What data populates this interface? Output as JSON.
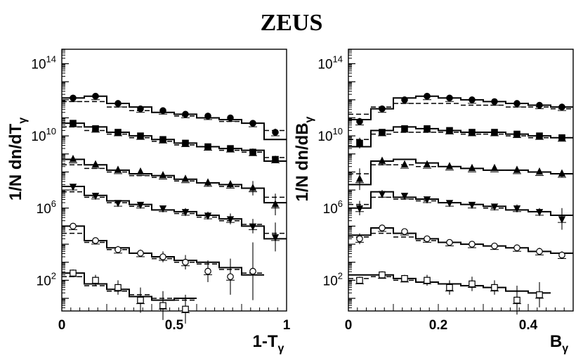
{
  "title": "ZEUS",
  "chart_data": [
    {
      "type": "scatter",
      "ylabel": "1/N dn/dT",
      "ylabel_sub": "γ",
      "xlabel": "1-T",
      "xlabel_sub": "γ",
      "xlim": [
        0,
        1
      ],
      "ylim_log10": [
        0.3,
        14.8
      ],
      "y_scale": "log",
      "xticks": [
        {
          "v": 0,
          "label": "0"
        },
        {
          "v": 0.5,
          "label": "0.5"
        },
        {
          "v": 1,
          "label": "1"
        }
      ],
      "yticks": [
        {
          "e": 2,
          "label": "10",
          "exp": "2"
        },
        {
          "e": 6,
          "label": "10",
          "exp": "6"
        },
        {
          "e": 10,
          "label": "10",
          "exp": "10"
        },
        {
          "e": 14,
          "label": "10",
          "exp": "14"
        }
      ],
      "series": [
        {
          "marker": "circle-filled",
          "x": [
            0.05,
            0.15,
            0.25,
            0.35,
            0.45,
            0.55,
            0.65,
            0.75,
            0.85,
            0.95
          ],
          "log_y": [
            12.1,
            12.2,
            11.8,
            11.5,
            11.4,
            11.2,
            11.1,
            11.0,
            10.7,
            10.2
          ],
          "err": [
            0.1,
            0.1,
            0.1,
            0.1,
            0.1,
            0.1,
            0.1,
            0.1,
            0.1,
            0.2
          ],
          "model_hist": [
            12.1,
            12.2,
            11.8,
            11.6,
            11.3,
            11.2,
            11.0,
            10.9,
            10.7,
            9.8
          ],
          "model_dash": [
            11.9,
            11.9,
            11.6,
            11.4,
            11.3,
            11.1,
            11.0,
            10.8,
            10.7,
            10.3
          ]
        },
        {
          "marker": "square-filled",
          "x": [
            0.05,
            0.15,
            0.25,
            0.35,
            0.45,
            0.55,
            0.65,
            0.75,
            0.85,
            0.95
          ],
          "log_y": [
            10.7,
            10.4,
            10.2,
            10.0,
            9.8,
            9.6,
            9.4,
            9.3,
            9.1,
            8.7
          ],
          "err": [
            0.1,
            0.1,
            0.1,
            0.1,
            0.1,
            0.1,
            0.1,
            0.1,
            0.2,
            0.2
          ],
          "model_hist": [
            10.7,
            10.5,
            10.2,
            10.0,
            9.8,
            9.6,
            9.4,
            9.3,
            9.2,
            8.6
          ],
          "model_dash": [
            10.5,
            10.3,
            10.1,
            9.9,
            9.7,
            9.5,
            9.4,
            9.2,
            9.1,
            8.8
          ]
        },
        {
          "marker": "triangle-up-filled",
          "x": [
            0.05,
            0.15,
            0.25,
            0.35,
            0.45,
            0.55,
            0.65,
            0.75,
            0.85,
            0.95
          ],
          "log_y": [
            8.7,
            8.4,
            8.1,
            8.0,
            7.8,
            7.6,
            7.4,
            7.3,
            7.1,
            6.2
          ],
          "err": [
            0.1,
            0.1,
            0.1,
            0.1,
            0.1,
            0.1,
            0.2,
            0.2,
            0.4,
            0.6
          ],
          "model_hist": [
            8.7,
            8.4,
            8.1,
            7.9,
            7.8,
            7.6,
            7.4,
            7.3,
            7.1,
            6.3
          ],
          "model_dash": [
            8.4,
            8.2,
            8.0,
            7.8,
            7.7,
            7.5,
            7.4,
            7.2,
            7.1,
            6.6
          ]
        },
        {
          "marker": "triangle-down-filled",
          "x": [
            0.05,
            0.15,
            0.25,
            0.35,
            0.45,
            0.55,
            0.65,
            0.75,
            0.85,
            0.95
          ],
          "log_y": [
            7.2,
            6.7,
            6.3,
            6.2,
            6.0,
            5.8,
            5.6,
            5.4,
            5.0,
            4.4
          ],
          "err": [
            0.1,
            0.1,
            0.1,
            0.1,
            0.1,
            0.2,
            0.2,
            0.3,
            0.4,
            0.8
          ],
          "model_hist": [
            7.2,
            6.7,
            6.4,
            6.2,
            5.9,
            5.8,
            5.6,
            5.4,
            5.0,
            4.3
          ],
          "model_dash": [
            6.9,
            6.6,
            6.3,
            6.1,
            5.9,
            5.7,
            5.5,
            5.3,
            5.1,
            4.6
          ]
        },
        {
          "marker": "circle-open",
          "x": [
            0.05,
            0.15,
            0.25,
            0.35,
            0.45,
            0.55,
            0.65,
            0.75,
            0.85
          ],
          "log_y": [
            5.0,
            4.2,
            3.7,
            3.5,
            3.3,
            3.0,
            2.5,
            2.2,
            2.5
          ],
          "err": [
            0.1,
            0.1,
            0.2,
            0.2,
            0.3,
            0.4,
            0.6,
            1.0,
            1.6
          ],
          "model_hist": [
            5.0,
            4.2,
            3.8,
            3.5,
            3.3,
            3.1,
            3.0,
            2.7,
            2.3
          ],
          "model_dash": [
            4.6,
            4.1,
            3.7,
            3.5,
            3.2,
            3.0,
            2.9,
            2.6,
            2.4
          ]
        },
        {
          "marker": "square-open",
          "x": [
            0.05,
            0.15,
            0.25,
            0.35,
            0.45,
            0.55
          ],
          "log_y": [
            2.4,
            2.0,
            1.6,
            0.9,
            0.6,
            0.4
          ],
          "err": [
            0.2,
            0.3,
            0.4,
            0.7,
            0.8,
            0.8
          ],
          "model_hist": [
            2.4,
            1.8,
            1.5,
            1.1,
            0.9,
            1.0
          ],
          "model_dash": [
            2.2,
            1.7,
            1.4,
            1.2,
            1.0,
            0.9
          ]
        }
      ]
    },
    {
      "type": "scatter",
      "ylabel": "1/N dn/dB",
      "ylabel_sub": "γ",
      "xlabel": "B",
      "xlabel_sub": "γ",
      "xlim": [
        0,
        0.5
      ],
      "ylim_log10": [
        0.3,
        14.8
      ],
      "y_scale": "log",
      "xticks": [
        {
          "v": 0,
          "label": "0"
        },
        {
          "v": 0.2,
          "label": "0.2"
        },
        {
          "v": 0.4,
          "label": "0.4"
        }
      ],
      "yticks": [
        {
          "e": 2,
          "label": "10",
          "exp": "2"
        },
        {
          "e": 6,
          "label": "10",
          "exp": "6"
        },
        {
          "e": 10,
          "label": "10",
          "exp": "10"
        },
        {
          "e": 14,
          "label": "10",
          "exp": "14"
        }
      ],
      "series": [
        {
          "marker": "circle-filled",
          "x": [
            0.025,
            0.075,
            0.125,
            0.175,
            0.225,
            0.275,
            0.325,
            0.375,
            0.425,
            0.475
          ],
          "log_y": [
            10.8,
            11.5,
            12.0,
            12.2,
            12.1,
            12.0,
            11.9,
            11.8,
            11.7,
            11.6
          ],
          "err": [
            0.2,
            0.1,
            0.1,
            0.1,
            0.1,
            0.1,
            0.1,
            0.1,
            0.1,
            0.1
          ],
          "model_hist": [
            10.9,
            11.5,
            12.1,
            12.2,
            12.1,
            12.0,
            11.9,
            11.8,
            11.7,
            11.6
          ],
          "model_dash": [
            11.2,
            11.6,
            11.8,
            11.8,
            11.8,
            11.7,
            11.7,
            11.6,
            11.6,
            11.5
          ]
        },
        {
          "marker": "square-filled",
          "x": [
            0.025,
            0.075,
            0.125,
            0.175,
            0.225,
            0.275,
            0.325,
            0.375,
            0.425,
            0.475
          ],
          "log_y": [
            9.6,
            10.2,
            10.4,
            10.4,
            10.3,
            10.2,
            10.2,
            10.1,
            10.0,
            9.9
          ],
          "err": [
            0.3,
            0.1,
            0.1,
            0.1,
            0.1,
            0.1,
            0.1,
            0.1,
            0.1,
            0.1
          ],
          "model_hist": [
            9.4,
            10.3,
            10.5,
            10.4,
            10.3,
            10.2,
            10.2,
            10.1,
            10.0,
            9.9
          ],
          "model_dash": [
            9.8,
            10.1,
            10.2,
            10.2,
            10.2,
            10.1,
            10.1,
            10.0,
            9.9,
            9.9
          ]
        },
        {
          "marker": "triangle-up-filled",
          "x": [
            0.025,
            0.075,
            0.125,
            0.175,
            0.225,
            0.275,
            0.325,
            0.375,
            0.425,
            0.475
          ],
          "log_y": [
            7.6,
            8.6,
            8.4,
            8.4,
            8.3,
            8.2,
            8.2,
            8.1,
            8.0,
            7.9
          ],
          "err": [
            0.6,
            0.2,
            0.1,
            0.1,
            0.1,
            0.1,
            0.1,
            0.1,
            0.1,
            0.2
          ],
          "model_hist": [
            7.3,
            8.6,
            8.7,
            8.5,
            8.3,
            8.2,
            8.1,
            8.1,
            8.0,
            7.9
          ],
          "model_dash": [
            7.9,
            8.4,
            8.4,
            8.3,
            8.3,
            8.2,
            8.1,
            8.1,
            8.0,
            7.9
          ]
        },
        {
          "marker": "triangle-down-filled",
          "x": [
            0.025,
            0.075,
            0.125,
            0.175,
            0.225,
            0.275,
            0.325,
            0.375,
            0.425,
            0.475
          ],
          "log_y": [
            6.0,
            6.8,
            6.7,
            6.5,
            6.3,
            6.2,
            6.1,
            6.0,
            5.8,
            5.4
          ],
          "err": [
            0.4,
            0.2,
            0.1,
            0.1,
            0.1,
            0.1,
            0.1,
            0.2,
            0.2,
            0.6
          ],
          "model_hist": [
            6.0,
            6.9,
            6.6,
            6.5,
            6.3,
            6.2,
            6.1,
            5.9,
            5.8,
            5.6
          ],
          "model_dash": [
            6.2,
            6.6,
            6.5,
            6.4,
            6.3,
            6.2,
            6.0,
            5.9,
            5.8,
            5.6
          ]
        },
        {
          "marker": "circle-open",
          "x": [
            0.025,
            0.075,
            0.125,
            0.175,
            0.225,
            0.275,
            0.325,
            0.375,
            0.425,
            0.475
          ],
          "log_y": [
            4.3,
            4.9,
            4.7,
            4.3,
            4.1,
            4.0,
            3.9,
            3.8,
            3.6,
            3.4
          ],
          "err": [
            0.3,
            0.1,
            0.1,
            0.1,
            0.1,
            0.1,
            0.1,
            0.1,
            0.2,
            0.2
          ],
          "model_hist": [
            4.5,
            4.9,
            4.6,
            4.3,
            4.1,
            4.0,
            3.9,
            3.8,
            3.6,
            3.5
          ],
          "model_dash": [
            4.4,
            4.6,
            4.4,
            4.2,
            4.1,
            4.0,
            3.9,
            3.8,
            3.6,
            3.5
          ]
        },
        {
          "marker": "square-open",
          "x": [
            0.025,
            0.075,
            0.125,
            0.175,
            0.225,
            0.275,
            0.325,
            0.375,
            0.425
          ],
          "log_y": [
            2.0,
            2.3,
            2.1,
            2.0,
            1.6,
            1.8,
            1.6,
            0.9,
            1.2
          ],
          "err": [
            0.2,
            0.2,
            0.2,
            0.3,
            0.4,
            0.4,
            0.4,
            0.8,
            0.7
          ],
          "model_hist": [
            2.3,
            2.3,
            2.1,
            1.9,
            1.8,
            1.7,
            1.6,
            1.4,
            1.3
          ],
          "model_dash": [
            2.1,
            2.2,
            2.0,
            1.9,
            1.8,
            1.7,
            1.6,
            1.4,
            1.3
          ]
        }
      ]
    }
  ]
}
